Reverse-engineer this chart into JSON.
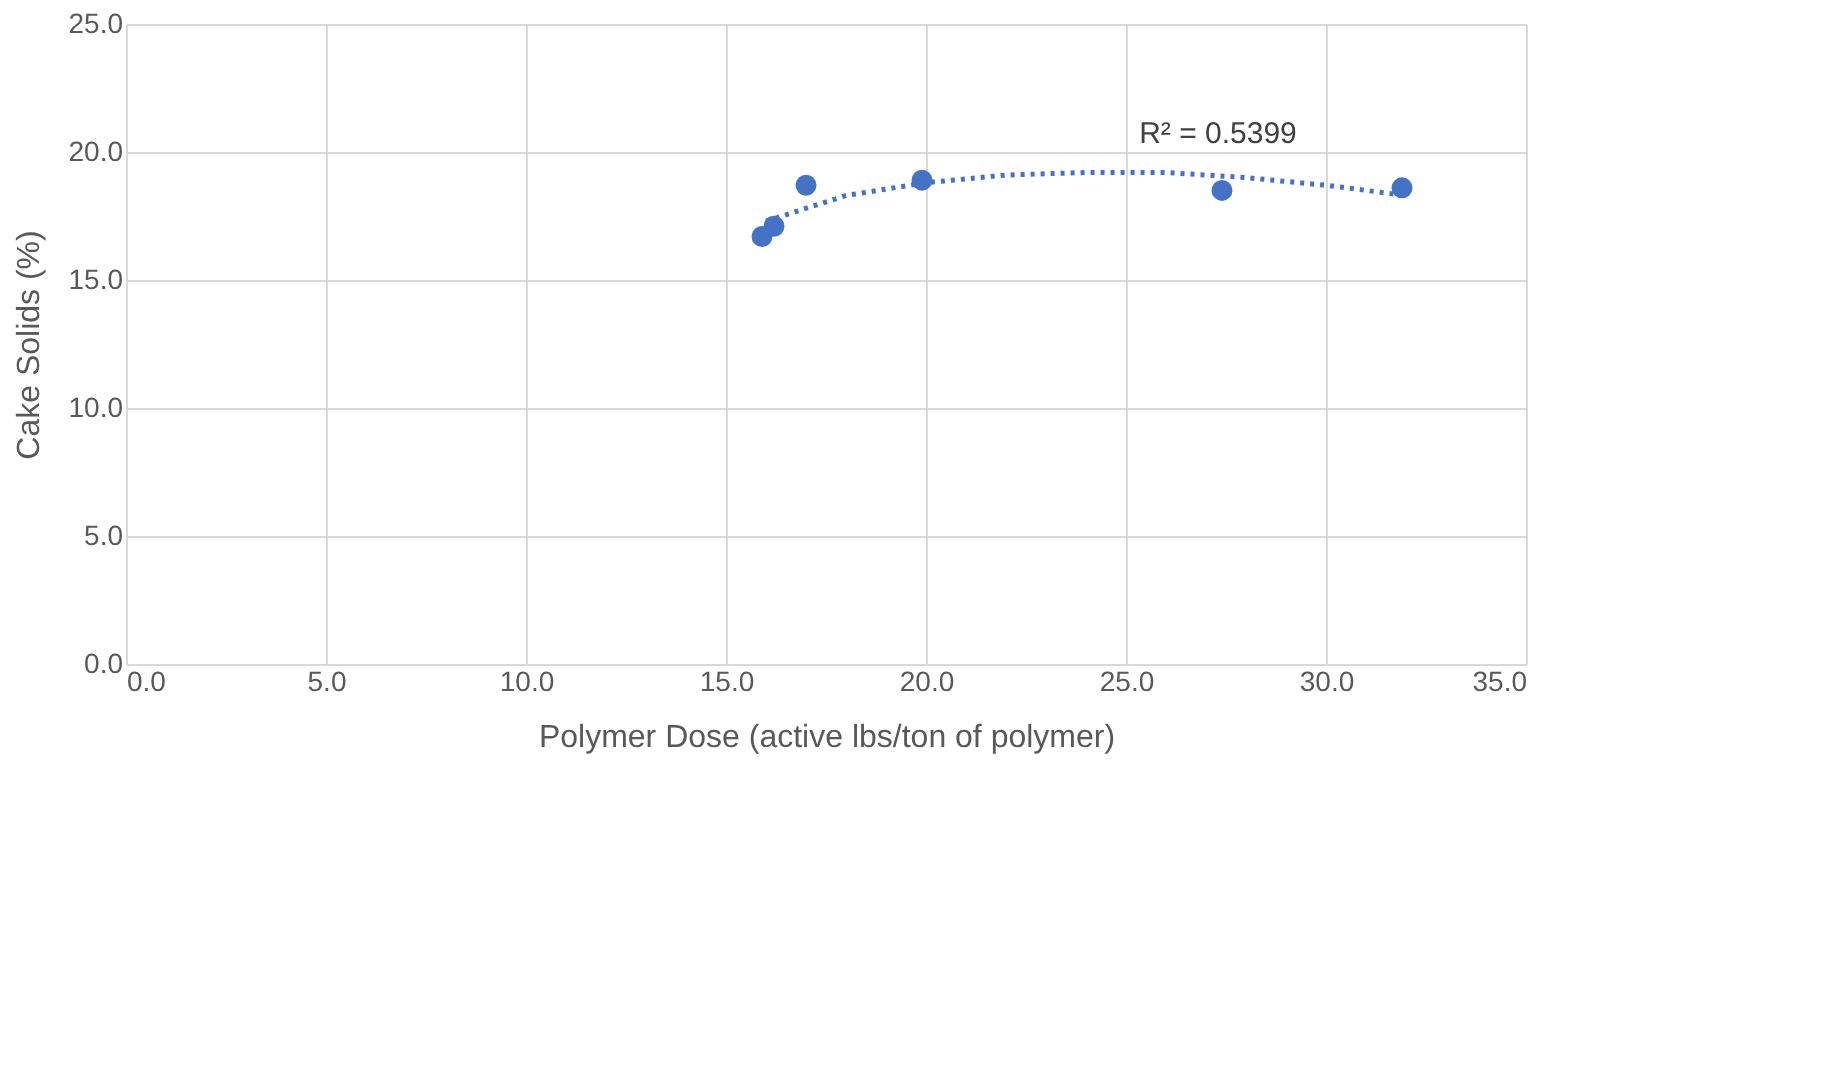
{
  "chart_data": {
    "type": "scatter",
    "xlabel": "Polymer Dose (active lbs/ton of polymer)",
    "ylabel": "Cake Solids (%)",
    "xlim": [
      0,
      35
    ],
    "ylim": [
      0,
      25
    ],
    "xticks": [
      {
        "value": 0,
        "label": "0.0"
      },
      {
        "value": 5,
        "label": "5.0"
      },
      {
        "value": 10,
        "label": "10.0"
      },
      {
        "value": 15,
        "label": "15.0"
      },
      {
        "value": 20,
        "label": "20.0"
      },
      {
        "value": 25,
        "label": "25.0"
      },
      {
        "value": 30,
        "label": "30.0"
      },
      {
        "value": 35,
        "label": "35.0"
      }
    ],
    "yticks": [
      {
        "value": 0,
        "label": "0.0"
      },
      {
        "value": 5,
        "label": "5.0"
      },
      {
        "value": 10,
        "label": "10.0"
      },
      {
        "value": 15,
        "label": "15.0"
      },
      {
        "value": 20,
        "label": "20.0"
      },
      {
        "value": 25,
        "label": "25.0"
      }
    ],
    "grid": true,
    "legend": false,
    "series": [
      {
        "color": "#4472c4",
        "marker": "circle",
        "x": [
          15.9,
          16.2,
          17.0,
          19.9,
          27.4,
          31.9
        ],
        "values": [
          16.7,
          17.1,
          18.7,
          18.9,
          18.5,
          18.6
        ]
      },
      {
        "type": "line",
        "color": "#4472c4",
        "line_style": "dotted",
        "marker": "none",
        "x": [
          16,
          18,
          20,
          22,
          24,
          26,
          28,
          30,
          32
        ],
        "values": [
          17.3,
          18.3,
          18.8,
          19.1,
          19.2,
          19.2,
          19.0,
          18.7,
          18.3
        ]
      }
    ],
    "annotations": [
      "R² = 0.5399"
    ]
  }
}
